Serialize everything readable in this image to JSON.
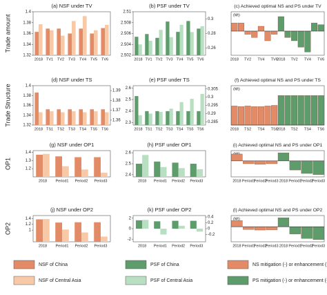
{
  "row_labels": [
    "Trade amount",
    "Trade Structure",
    "OP1",
    "OP2"
  ],
  "chart_data": [
    {
      "type": "bar",
      "title": "(a) NSF under TV",
      "categories": [
        "2018",
        "TV1",
        "TV2",
        "TV3",
        "TV4",
        "TV5",
        "TV6"
      ],
      "series": [
        {
          "name": "NSF of China",
          "color": "#e38b66",
          "values": [
            1.363,
            1.369,
            1.369,
            1.36,
            1.369,
            1.36,
            1.37
          ]
        },
        {
          "name": "NSF of Central Asia",
          "color": "#f8c9a6",
          "values": [
            1.377,
            1.366,
            1.356,
            1.383,
            1.392,
            1.366,
            1.376
          ]
        }
      ],
      "ylim": [
        1.32,
        1.4
      ],
      "yticks": [
        1.32,
        1.34,
        1.36,
        1.38,
        1.4
      ]
    },
    {
      "type": "bar",
      "title": "(b) PSF under TV",
      "categories": [
        "2018",
        "TV1",
        "TV2",
        "TV3",
        "TV4",
        "TV5",
        "TV6"
      ],
      "series": [
        {
          "name": "PSF of China",
          "color": "#5e9c6c",
          "values": [
            2.5054,
            2.5059,
            2.5052,
            2.5082,
            2.5063,
            2.5083,
            2.5069
          ]
        },
        {
          "name": "PSF of Central Asia",
          "color": "#b9dfc3",
          "axis": "y2",
          "values": [
            0.265,
            0.27,
            0.285,
            0.275,
            0.292,
            0.282,
            0.29
          ]
        }
      ],
      "ylim": [
        2.502,
        2.51
      ],
      "yticks": [
        2.502,
        2.504,
        2.506,
        2.508,
        2.51
      ],
      "y2lim": [
        0.25,
        0.31
      ],
      "y2ticks": [
        0.26,
        0.28,
        0.3
      ]
    },
    {
      "type": "signed",
      "title": "(c) Achieved optimal NS and PS under TV",
      "annotation": "(Mt)",
      "categories": [
        "2018",
        null,
        "TV2",
        null,
        "TV4",
        null,
        "TV6",
        "2018",
        null,
        "TV2",
        null,
        "TV4",
        null,
        "TV6"
      ],
      "series": [
        {
          "name": "NS mitigation (-) or enhancement (+)",
          "color": "#e38b66",
          "values": [
            0.5,
            0.5,
            -0.2,
            -0.4,
            0.3,
            -0.6,
            -0.2,
            null,
            null,
            null,
            null,
            null,
            null,
            null
          ]
        },
        {
          "name": "PS mitigation (-) or enhancement (+)",
          "color": "#5e9c6c",
          "values": [
            null,
            null,
            null,
            null,
            null,
            null,
            null,
            0.9,
            -0.4,
            -0.6,
            -1.0,
            -1.3,
            0.5,
            0.4
          ]
        }
      ],
      "ylim": [
        -1.5,
        1.2
      ]
    },
    {
      "type": "bar",
      "title": "(d) NSF under TS",
      "categories": [
        "2018",
        "TS1",
        "TS2",
        "TS3",
        "TS4",
        "TS5",
        "TS6"
      ],
      "series": [
        {
          "name": "NSF of China",
          "color": "#e38b66",
          "values": [
            1.386,
            1.352,
            1.352,
            1.352,
            1.352,
            1.352,
            1.352
          ]
        },
        {
          "name": "NSF of Central Asia",
          "color": "#f8c9a6",
          "axis": "y2",
          "values": [
            1.368,
            1.369,
            1.368,
            1.369,
            1.368,
            1.369,
            1.368
          ]
        }
      ],
      "ylim": [
        1.32,
        1.4
      ],
      "yticks": [
        1.32,
        1.34,
        1.36,
        1.38,
        1.4
      ],
      "y2lim": [
        1.355,
        1.395
      ],
      "y2ticks": [
        1.36,
        1.37,
        1.38,
        1.39
      ]
    },
    {
      "type": "bar",
      "title": "(e) PSF under TS",
      "categories": [
        "2018",
        "TS1",
        "TS2",
        "TS3",
        "TS4",
        "TS5",
        "TS6"
      ],
      "series": [
        {
          "name": "PSF of China",
          "color": "#5e9c6c",
          "values": [
            2.53,
            2.4,
            2.4,
            2.4,
            2.4,
            2.4,
            2.4
          ]
        },
        {
          "name": "PSF of Central Asia",
          "color": "#b9dfc3",
          "axis": "y2",
          "values": [
            0.289,
            0.29,
            0.291,
            0.293,
            0.297,
            0.299,
            0.302
          ]
        }
      ],
      "ylim": [
        2.28,
        2.62
      ],
      "yticks": [
        2.3,
        2.4,
        2.5,
        2.6
      ],
      "y2lim": [
        0.283,
        0.307
      ],
      "y2ticks": [
        0.285,
        0.29,
        0.295,
        0.3,
        0.305
      ]
    },
    {
      "type": "signed",
      "title": "(f) Achieved optimal NS and PS under TS",
      "annotation": "(Mt)",
      "categories": [
        "2018",
        null,
        "TS2",
        null,
        "TS4",
        null,
        "TS6",
        "2018",
        null,
        "TS2",
        null,
        "TS4",
        null,
        "TS6"
      ],
      "series": [
        {
          "name": "NS mitigation (-) or enhancement (+)",
          "color": "#e38b66",
          "values": [
            1.55,
            1.5,
            1.55,
            1.5,
            1.5,
            1.55,
            1.6,
            null,
            null,
            null,
            null,
            null,
            null,
            null
          ]
        },
        {
          "name": "PS mitigation (-) or enhancement (+)",
          "color": "#5e9c6c",
          "values": [
            null,
            null,
            null,
            null,
            null,
            null,
            null,
            2.4,
            2.4,
            2.4,
            2.4,
            2.4,
            2.4,
            2.4
          ]
        }
      ],
      "ylim": [
        0,
        3.2
      ]
    },
    {
      "type": "bar",
      "title": "(g) NSF under OP1",
      "categories": [
        "2018",
        "Period1",
        "Period2",
        "Period3"
      ],
      "series": [
        {
          "name": "NSF of China",
          "color": "#e38b66",
          "values": [
            1.37,
            1.35,
            1.34,
            1.34
          ]
        },
        {
          "name": "NSF of Central Asia",
          "color": "#f8c9a6",
          "values": [
            1.38,
            1.23,
            1.19,
            1.15
          ]
        }
      ],
      "ylim": [
        1.1,
        1.42
      ],
      "yticks": [
        1.2,
        1.3,
        1.4
      ]
    },
    {
      "type": "bar",
      "title": "(h) PSF under OP1",
      "categories": [
        "2018",
        "Period1",
        "Period2",
        "Period3"
      ],
      "series": [
        {
          "name": "PSF of China",
          "color": "#5e9c6c",
          "values": [
            2.5,
            2.52,
            2.51,
            2.5
          ]
        },
        {
          "name": "PSF of Central Asia",
          "color": "#b9dfc3",
          "values": [
            2.58,
            2.47,
            2.46,
            2.45
          ]
        }
      ],
      "ylim": [
        2.38,
        2.62
      ],
      "yticks": [
        2.4,
        2.5,
        2.6
      ]
    },
    {
      "type": "signed",
      "title": "(i) Achieved optimal NS and PS under OP1",
      "annotation": "(Mt)",
      "categories": [
        "2018",
        "Period1",
        "Period2",
        "Period3",
        "2018",
        "Period1",
        "Period2",
        "Period3"
      ],
      "series": [
        {
          "name": "NS mitigation (-) or enhancement (+)",
          "color": "#e38b66",
          "values": [
            1.2,
            -0.5,
            -0.6,
            -0.5,
            null,
            null,
            null,
            null
          ]
        },
        {
          "name": "PS mitigation (-) or enhancement (+)",
          "color": "#5e9c6c",
          "values": [
            null,
            null,
            null,
            null,
            1.4,
            -1.6,
            -2.2,
            -2.4
          ]
        }
      ],
      "ylim": [
        -2.8,
        1.8
      ]
    },
    {
      "type": "bar",
      "title": "(j) NSF under OP2",
      "categories": [
        "2018",
        "Period1",
        "Period2",
        "Period3"
      ],
      "series": [
        {
          "name": "NSF of China",
          "color": "#e38b66",
          "values": [
            1.37,
            1.26,
            1.27,
            1.27
          ]
        },
        {
          "name": "NSF of Central Asia",
          "color": "#f8c9a6",
          "values": [
            1.38,
            1.02,
            0.92,
            0.78
          ]
        }
      ],
      "ylim": [
        0.6,
        1.5
      ],
      "yticks": [
        1,
        1.2,
        1.4
      ]
    },
    {
      "type": "bar",
      "title": "(k) PSF under OP2",
      "categories": [
        "2018",
        "Period1",
        "Period2",
        "Period3"
      ],
      "series": [
        {
          "name": "PSF of China",
          "color": "#5e9c6c",
          "values": [
            1.6,
            1.4,
            1.5,
            1.5
          ]
        },
        {
          "name": "PSF of Central Asia",
          "color": "#b9dfc3",
          "axis": "y2",
          "values": [
            0.3,
            -0.2,
            0.1,
            -0.1
          ]
        }
      ],
      "ylim": [
        -2.5,
        2.5
      ],
      "yticks": [
        -2,
        0,
        2
      ],
      "y2lim": [
        -0.45,
        0.45
      ],
      "y2ticks": [
        -0.2,
        0,
        0.2,
        0.4
      ]
    },
    {
      "type": "signed",
      "title": "(l) Achieved optimal NS and PS under OP2",
      "annotation": "(Mt)",
      "categories": [
        "2018",
        "Period1",
        "Period2",
        "Period3",
        "2018",
        "Period1",
        "Period2",
        "Period3"
      ],
      "series": [
        {
          "name": "NS mitigation (-) or enhancement (+)",
          "color": "#e38b66",
          "values": [
            1.1,
            -0.5,
            -0.6,
            -0.55,
            null,
            null,
            null,
            null
          ]
        },
        {
          "name": "PS mitigation (-) or enhancement (+)",
          "color": "#5e9c6c",
          "values": [
            null,
            null,
            null,
            null,
            1.6,
            -1.3,
            -2.1,
            -2.3
          ]
        }
      ],
      "ylim": [
        -2.7,
        2.0
      ]
    }
  ]
}
